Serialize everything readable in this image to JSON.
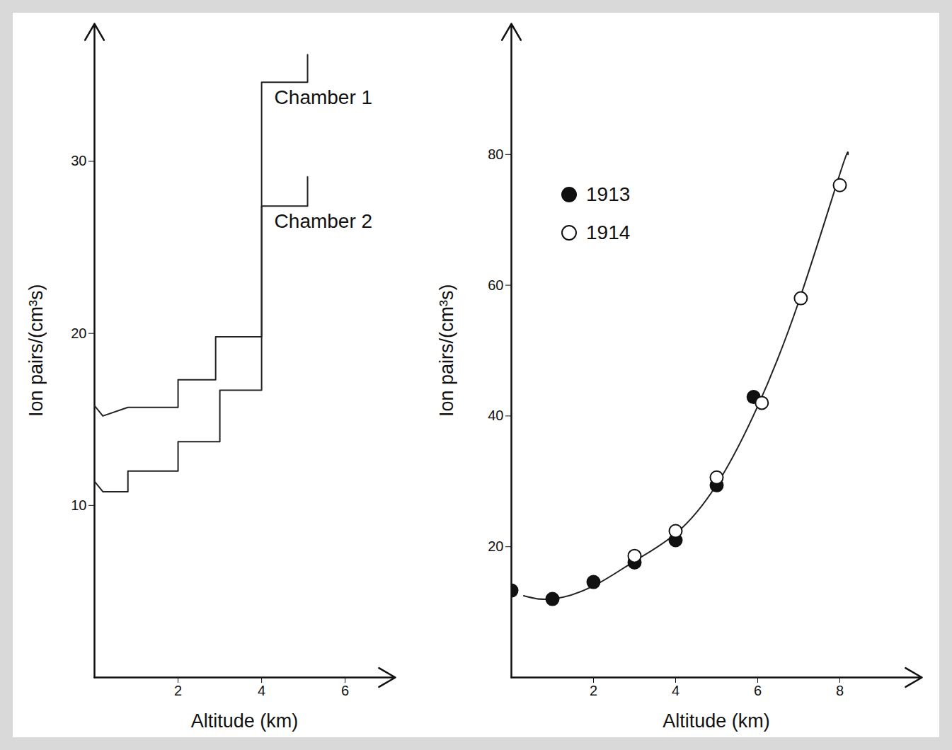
{
  "chart_data": [
    {
      "type": "line",
      "xlabel": "Altitude (km)",
      "ylabel": "Ion pairs/(cm³s)",
      "xlim": [
        0,
        7.2
      ],
      "ylim": [
        0,
        38
      ],
      "xticks": [
        2,
        4,
        6
      ],
      "yticks": [
        10,
        20,
        30
      ],
      "series": [
        {
          "name": "Chamber 1",
          "color": "#222222",
          "line_style": "solid",
          "x": [
            0,
            0.2,
            0.8,
            2,
            2,
            2.9,
            2.9,
            4,
            4,
            5.1,
            5.1
          ],
          "values": [
            15.8,
            15.2,
            15.7,
            15.7,
            17.3,
            17.3,
            19.8,
            19.8,
            34.6,
            34.6,
            36.2
          ]
        },
        {
          "name": "Chamber 2",
          "color": "#222222",
          "line_style": "solid",
          "x": [
            0,
            0.2,
            0.8,
            0.8,
            2,
            2,
            3,
            3,
            4,
            4,
            5.1,
            5.1
          ],
          "values": [
            11.4,
            10.8,
            10.8,
            12.0,
            12.0,
            13.7,
            13.7,
            16.7,
            16.7,
            27.4,
            27.4,
            29.1
          ]
        }
      ]
    },
    {
      "type": "scatter",
      "xlabel": "Altitude (km)",
      "ylabel": "Ion pairs/(cm³s)",
      "xlim": [
        0,
        10
      ],
      "ylim": [
        0,
        100
      ],
      "xticks": [
        2,
        4,
        6,
        8
      ],
      "yticks": [
        20,
        40,
        60,
        80
      ],
      "legend": "top-left",
      "series": [
        {
          "type": "line",
          "color": "#222222",
          "line_style": "smooth",
          "x": [
            0.3,
            1,
            2,
            3,
            4,
            5,
            6,
            7,
            8,
            8.2
          ],
          "values": [
            12.5,
            12,
            14,
            17.8,
            22,
            29.5,
            41.5,
            57.5,
            77,
            80
          ]
        },
        {
          "name": "1913",
          "type": "scatter",
          "color": "#111111",
          "marker": "circle",
          "x": [
            0,
            1,
            2,
            3,
            4,
            5,
            5.9
          ],
          "values": [
            13.3,
            12.0,
            14.6,
            17.6,
            21.0,
            29.4,
            42.9
          ]
        },
        {
          "name": "1914",
          "type": "scatter",
          "color": "#111111",
          "marker": "open_circle",
          "x": [
            3,
            4,
            5,
            6.1,
            7.05,
            8
          ],
          "values": [
            18.6,
            22.4,
            30.6,
            42.0,
            58.0,
            75.3
          ]
        }
      ]
    }
  ]
}
